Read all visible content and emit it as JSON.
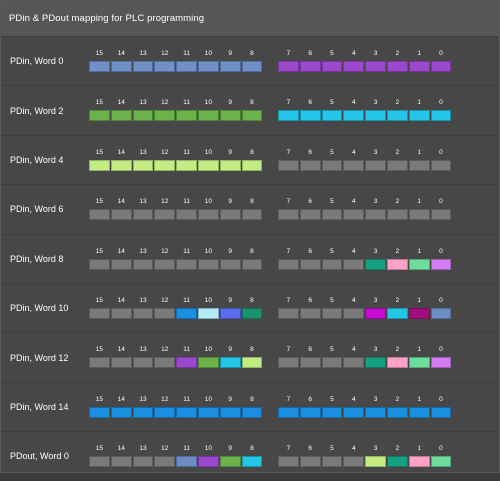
{
  "title": "PDin & PDout mapping for PLC programming",
  "hi_bits": [
    "15",
    "14",
    "13",
    "12",
    "11",
    "10",
    "9",
    "8"
  ],
  "lo_bits": [
    "7",
    "6",
    "5",
    "4",
    "3",
    "2",
    "1",
    "0"
  ],
  "colors": {
    "gray": "#7a7a7a",
    "steel": "#7090c8",
    "purple": "#9c48cc",
    "green": "#6cb24a",
    "cyan": "#23c6e6",
    "lime": "#c4ec84",
    "teal": "#13a083",
    "pink": "#ffa2c8",
    "mint": "#6edc9c",
    "violet": "#d47cf2",
    "blue": "#1a8ee0",
    "ice": "#b4ecfa",
    "indigo": "#5c6ef0",
    "darkgreen": "#1a946e",
    "magenta": "#c80ad2",
    "plum": "#a0107c",
    "slate": "#6c8cc4"
  },
  "rows": [
    {
      "label": "PDin, Word 0",
      "hi": [
        "steel",
        "steel",
        "steel",
        "steel",
        "steel",
        "steel",
        "steel",
        "steel"
      ],
      "lo": [
        "purple",
        "purple",
        "purple",
        "purple",
        "purple",
        "purple",
        "purple",
        "purple"
      ]
    },
    {
      "label": "PDin, Word 2",
      "hi": [
        "green",
        "green",
        "green",
        "green",
        "green",
        "green",
        "green",
        "green"
      ],
      "lo": [
        "cyan",
        "cyan",
        "cyan",
        "cyan",
        "cyan",
        "cyan",
        "cyan",
        "cyan"
      ]
    },
    {
      "label": "PDin, Word 4",
      "hi": [
        "lime",
        "lime",
        "lime",
        "lime",
        "lime",
        "lime",
        "lime",
        "lime"
      ],
      "lo": [
        "gray",
        "gray",
        "gray",
        "gray",
        "gray",
        "gray",
        "gray",
        "gray"
      ]
    },
    {
      "label": "PDin, Word 6",
      "hi": [
        "gray",
        "gray",
        "gray",
        "gray",
        "gray",
        "gray",
        "gray",
        "gray"
      ],
      "lo": [
        "gray",
        "gray",
        "gray",
        "gray",
        "gray",
        "gray",
        "gray",
        "gray"
      ]
    },
    {
      "label": "PDin, Word 8",
      "hi": [
        "gray",
        "gray",
        "gray",
        "gray",
        "gray",
        "gray",
        "gray",
        "gray"
      ],
      "lo": [
        "gray",
        "gray",
        "gray",
        "gray",
        "teal",
        "pink",
        "mint",
        "violet"
      ]
    },
    {
      "label": "PDin, Word 10",
      "hi": [
        "gray",
        "gray",
        "gray",
        "gray",
        "blue",
        "ice",
        "indigo",
        "darkgreen"
      ],
      "lo": [
        "gray",
        "gray",
        "gray",
        "gray",
        "magenta",
        "cyan",
        "plum",
        "slate"
      ]
    },
    {
      "label": "PDin, Word 12",
      "hi": [
        "gray",
        "gray",
        "gray",
        "gray",
        "purple",
        "green",
        "cyan",
        "lime"
      ],
      "lo": [
        "gray",
        "gray",
        "gray",
        "gray",
        "teal",
        "pink",
        "mint",
        "violet"
      ]
    },
    {
      "label": "PDin, Word 14",
      "hi": [
        "blue",
        "blue",
        "blue",
        "blue",
        "blue",
        "blue",
        "blue",
        "blue"
      ],
      "lo": [
        "blue",
        "blue",
        "blue",
        "blue",
        "blue",
        "blue",
        "blue",
        "blue"
      ]
    },
    {
      "label": "PDout, Word 0",
      "hi": [
        "gray",
        "gray",
        "gray",
        "gray",
        "slate",
        "purple",
        "green",
        "cyan"
      ],
      "lo": [
        "gray",
        "gray",
        "gray",
        "gray",
        "lime",
        "teal",
        "pink",
        "mint"
      ]
    }
  ]
}
